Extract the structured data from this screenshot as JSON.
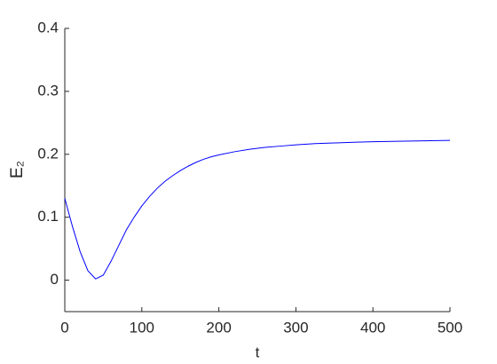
{
  "chart_data": {
    "type": "line",
    "xlabel": "t",
    "ylabel": "E₂",
    "x": [
      0,
      10,
      20,
      30,
      40,
      50,
      60,
      70,
      80,
      90,
      100,
      110,
      120,
      130,
      140,
      150,
      160,
      170,
      180,
      190,
      200,
      220,
      240,
      260,
      280,
      300,
      325,
      350,
      375,
      400,
      450,
      500
    ],
    "series": [
      {
        "color": "#0000ff",
        "values": [
          0.13,
          0.085,
          0.045,
          0.015,
          0.002,
          0.008,
          0.03,
          0.055,
          0.08,
          0.1,
          0.118,
          0.133,
          0.146,
          0.157,
          0.166,
          0.174,
          0.181,
          0.187,
          0.192,
          0.196,
          0.199,
          0.204,
          0.208,
          0.211,
          0.213,
          0.215,
          0.217,
          0.218,
          0.219,
          0.22,
          0.221,
          0.222
        ]
      }
    ],
    "xlim": [
      0,
      500
    ],
    "xticks": [
      0,
      100,
      200,
      300,
      400,
      500
    ],
    "ylim": [
      -0.05,
      0.4
    ],
    "yticks": [
      0,
      0.1,
      0.2,
      0.3,
      0.4
    ]
  }
}
